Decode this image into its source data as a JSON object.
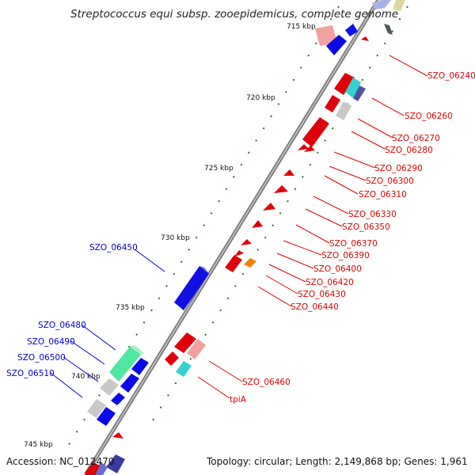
{
  "title": "Streptococcus equi subsp. zooepidemicus, complete genome",
  "footer": {
    "accession": "Accession: NC_012470",
    "summary": "Topology: circular; Length: 2,149,868 bp; Genes: 1,961"
  },
  "ticks": [
    {
      "label": "715 kbp"
    },
    {
      "label": "720 kbp"
    },
    {
      "label": "725 kbp"
    },
    {
      "label": "730 kbp"
    },
    {
      "label": "735 kbp"
    },
    {
      "label": "740 kbp"
    },
    {
      "label": "745 kbp"
    }
  ],
  "right_labels": [
    "SZO_06240",
    "SZO_06260",
    "SZO_06270",
    "SZO_06280",
    "SZO_06290",
    "SZO_06300",
    "SZO_06310",
    "SZO_06330",
    "SZO_06350",
    "SZO_06370",
    "SZO_06390",
    "SZO_06400",
    "SZO_06420",
    "SZO_06430",
    "SZO_06440",
    "SZO_06460",
    "tpiA"
  ],
  "left_labels": [
    "SZO_06450",
    "SZO_06480",
    "SZO_06490",
    "SZO_06500",
    "SZO_06510"
  ],
  "colors": {
    "backbone": "#8c8c8c",
    "forward_gene": "#e0000a",
    "reverse_gene": "#0000e0",
    "pale_red": "#f3a0a0",
    "grey": "#c8c8c8",
    "cyan": "#35d0d0",
    "green": "#4fe6a0",
    "orange": "#f08000",
    "dot": "#1f7a1f",
    "label_red": "#e00000",
    "label_blue": "#0000cc"
  }
}
